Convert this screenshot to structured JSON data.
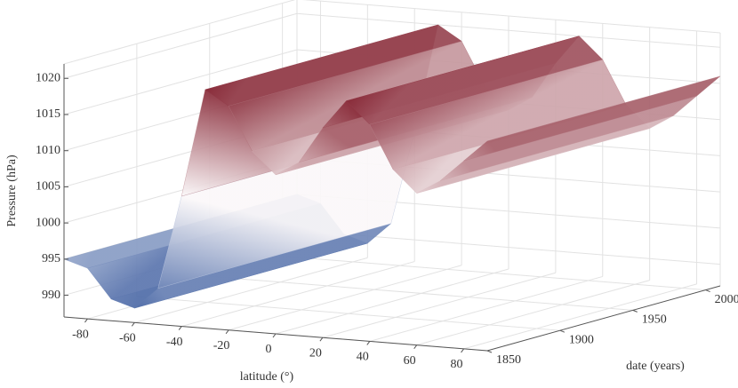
{
  "chart_data": {
    "type": "surface",
    "xlabel": "latitude (°)",
    "ylabel": "date (years)",
    "zlabel": "Pressure (hPa)",
    "x": [
      -90,
      -80,
      -70,
      -60,
      -50,
      -40,
      -30,
      -20,
      -10,
      0,
      10,
      20,
      30,
      40,
      50,
      60,
      70,
      80,
      90
    ],
    "z": [
      995,
      994,
      990,
      989,
      992,
      1005,
      1020,
      1018,
      1012,
      1009,
      1011,
      1016,
      1020,
      1017,
      1011,
      1008,
      1010,
      1013,
      1016
    ],
    "xlim": [
      -90,
      90
    ],
    "ylim": [
      1850,
      2010
    ],
    "zlim": [
      987,
      1022
    ],
    "xticks": [
      -80,
      -60,
      -40,
      -20,
      0,
      20,
      40,
      60,
      80
    ],
    "yticks": [
      1850,
      1900,
      1950,
      2000
    ],
    "zticks": [
      990,
      995,
      1000,
      1005,
      1010,
      1015,
      1020
    ],
    "colormap": [
      "#3b5b9e",
      "#ffffff",
      "#7a1020"
    ],
    "grid": true
  }
}
